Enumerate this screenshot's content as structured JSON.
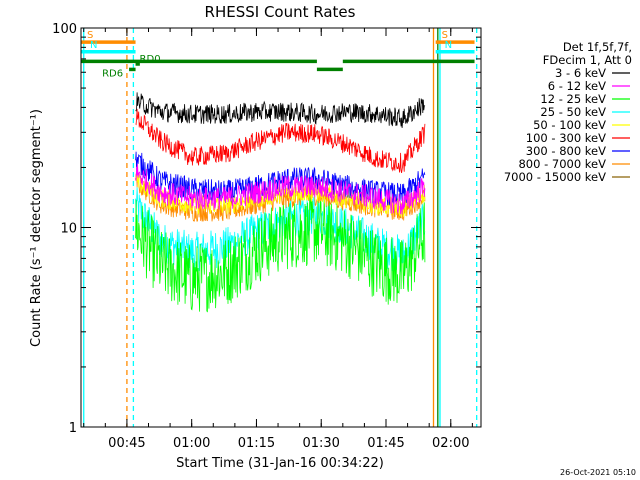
{
  "chart_data": {
    "type": "line",
    "title": "RHESSI Count Rates",
    "xlabel": "Start Time (31-Jan-16 00:34:22)",
    "ylabel": "Count Rate (s⁻¹ detector segment⁻¹)",
    "x_scale": "time",
    "x_range": [
      "00:34:22",
      "02:07:00"
    ],
    "x_ticks": [
      "00:45",
      "01:00",
      "01:15",
      "01:30",
      "01:45",
      "02:00"
    ],
    "y_scale": "log",
    "ylim": [
      1,
      100
    ],
    "y_ticks": [
      "1",
      "10",
      "100"
    ],
    "grid": false,
    "legend_position": "right",
    "legend_header": [
      "Det 1f,5f,7f,",
      "FDecim 1, Att 0"
    ],
    "timestamp": "26-Oct-2021 05:10",
    "series": [
      {
        "name": "3 - 6 keV",
        "color": "#000000",
        "x": [
          "00:47:00",
          "00:53:00",
          "01:00:00",
          "01:08:00",
          "01:15:00",
          "01:22:00",
          "01:29:00",
          "01:36:00",
          "01:43:00",
          "01:49:00",
          "01:54:00"
        ],
        "values": [
          43,
          38,
          37,
          37,
          38,
          38,
          37,
          38,
          37,
          35,
          42
        ],
        "noise": 0.05
      },
      {
        "name": "6 - 12 keV",
        "color": "#ff00ff",
        "x": [
          "00:47:00",
          "00:53:00",
          "01:00:00",
          "01:08:00",
          "01:15:00",
          "01:22:00",
          "01:29:00",
          "01:36:00",
          "01:43:00",
          "01:49:00",
          "01:54:00"
        ],
        "values": [
          19,
          15,
          14,
          14,
          15,
          16,
          16,
          15,
          14,
          13,
          16
        ],
        "noise": 0.06
      },
      {
        "name": "12 - 25 keV",
        "color": "#00ff00",
        "x": [
          "00:47:00",
          "00:53:00",
          "01:00:00",
          "01:08:00",
          "01:15:00",
          "01:22:00",
          "01:29:00",
          "01:36:00",
          "01:43:00",
          "01:49:00",
          "01:54:00"
        ],
        "values": [
          10,
          6.5,
          5.5,
          6.0,
          7.8,
          9.2,
          9.8,
          8.5,
          6.5,
          5.8,
          9.5
        ],
        "noise": 0.18
      },
      {
        "name": "25 - 50 keV",
        "color": "#00ffff",
        "x": [
          "00:47:00",
          "00:53:00",
          "01:00:00",
          "01:08:00",
          "01:15:00",
          "01:22:00",
          "01:29:00",
          "01:36:00",
          "01:43:00",
          "01:49:00",
          "01:54:00"
        ],
        "values": [
          13,
          8.5,
          7.5,
          8.0,
          9.5,
          11,
          11.5,
          10,
          8.2,
          7.2,
          11
        ],
        "noise": 0.1
      },
      {
        "name": "50 - 100 keV",
        "color": "#ffff00",
        "x": [
          "00:47:00",
          "00:53:00",
          "01:00:00",
          "01:08:00",
          "01:15:00",
          "01:22:00",
          "01:29:00",
          "01:36:00",
          "01:43:00",
          "01:49:00",
          "01:54:00"
        ],
        "values": [
          17,
          14,
          13,
          13,
          14,
          15,
          15,
          14,
          13,
          12.5,
          15
        ],
        "noise": 0.05
      },
      {
        "name": "100 - 300 keV",
        "color": "#ff0000",
        "x": [
          "00:47:00",
          "00:53:00",
          "01:00:00",
          "01:08:00",
          "01:15:00",
          "01:22:00",
          "01:29:00",
          "01:36:00",
          "01:43:00",
          "01:49:00",
          "01:54:00"
        ],
        "values": [
          36,
          27,
          22.5,
          23.5,
          27,
          30,
          29.5,
          26,
          22,
          21,
          30
        ],
        "noise": 0.05
      },
      {
        "name": "300 - 800 keV",
        "color": "#0000ff",
        "x": [
          "00:47:00",
          "00:53:00",
          "01:00:00",
          "01:08:00",
          "01:15:00",
          "01:22:00",
          "01:29:00",
          "01:36:00",
          "01:43:00",
          "01:49:00",
          "01:54:00"
        ],
        "values": [
          22,
          17,
          15.5,
          15,
          16,
          17.5,
          17.5,
          16,
          15,
          14.5,
          18
        ],
        "noise": 0.06
      },
      {
        "name": "800 - 7000 keV",
        "color": "#ff8c00",
        "x": [
          "00:47:00",
          "00:53:00",
          "01:00:00",
          "01:08:00",
          "01:15:00",
          "01:22:00",
          "01:29:00",
          "01:36:00",
          "01:43:00",
          "01:49:00",
          "01:54:00"
        ],
        "values": [
          17,
          13,
          12,
          12,
          13,
          14,
          14.5,
          13.5,
          12.5,
          12,
          14.5
        ],
        "noise": 0.05
      },
      {
        "name": "7000 - 15000 keV",
        "color": "#8b6508",
        "x": [],
        "values": [],
        "noise": 0
      }
    ],
    "segments": [
      {
        "label": "S",
        "color": "#ff8c00",
        "start": "00:34:22",
        "end": "00:47:00",
        "value": 85
      },
      {
        "label": "S",
        "color": "#ff8c00",
        "start": "01:56:30",
        "end": "02:05:30",
        "value": 85
      },
      {
        "label": "N",
        "color": "#00ffff",
        "start": "00:34:22",
        "end": "00:47:00",
        "value": 76
      },
      {
        "label": "N",
        "color": "#00ffff",
        "start": "01:56:30",
        "end": "02:05:30",
        "value": 76
      },
      {
        "label": "",
        "color": "#008000",
        "start": "00:34:22",
        "end": "01:29:00",
        "value": 68
      },
      {
        "label": "",
        "color": "#008000",
        "start": "01:29:00",
        "end": "01:35:00",
        "value": 62
      },
      {
        "label": "",
        "color": "#008000",
        "start": "01:35:00",
        "end": "02:05:30",
        "value": 68
      },
      {
        "label": "RD6",
        "color": "#008000",
        "start": "00:45:30",
        "end": "00:47:00",
        "value": 62
      },
      {
        "label": "RD0",
        "color": "#008000",
        "start": "00:47:00",
        "end": "00:48:00",
        "value": 66
      }
    ],
    "vertical_markers": [
      {
        "x": "00:35:00",
        "color": "#00ffff",
        "style": "solid"
      },
      {
        "x": "00:45:00",
        "color": "#ff8c00",
        "style": "dashed"
      },
      {
        "x": "00:46:30",
        "color": "#00ffff",
        "style": "dashed"
      },
      {
        "x": "01:56:00",
        "color": "#ff8c00",
        "style": "solid"
      },
      {
        "x": "01:57:00",
        "color": "#008000",
        "style": "solid"
      },
      {
        "x": "01:57:30",
        "color": "#00ffff",
        "style": "solid"
      },
      {
        "x": "02:06:00",
        "color": "#00ffff",
        "style": "dashed"
      }
    ]
  }
}
